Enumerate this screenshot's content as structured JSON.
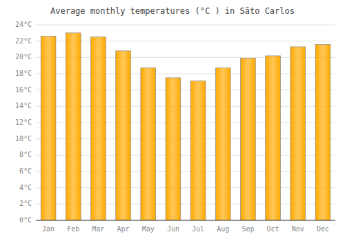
{
  "chart_data": {
    "type": "bar",
    "title": "Average monthly temperatures (°C ) in Sãto Carlos",
    "categories": [
      "Jan",
      "Feb",
      "Mar",
      "Apr",
      "May",
      "Jun",
      "Jul",
      "Aug",
      "Sep",
      "Oct",
      "Nov",
      "Dec"
    ],
    "values": [
      22.6,
      23.0,
      22.5,
      20.8,
      18.7,
      17.5,
      17.1,
      18.7,
      19.9,
      20.2,
      21.3,
      21.6
    ],
    "color": "#FFAA00",
    "ylim": [
      0,
      24
    ],
    "yticks": [
      {
        "value": 0,
        "label": "0°C"
      },
      {
        "value": 2,
        "label": "2°C"
      },
      {
        "value": 4,
        "label": "4°C"
      },
      {
        "value": 6,
        "label": "6°C"
      },
      {
        "value": 8,
        "label": "8°C"
      },
      {
        "value": 10,
        "label": "10°C"
      },
      {
        "value": 12,
        "label": "12°C"
      },
      {
        "value": 14,
        "label": "14°C"
      },
      {
        "value": 16,
        "label": "16°C"
      },
      {
        "value": 18,
        "label": "18°C"
      },
      {
        "value": 20,
        "label": "20°C"
      },
      {
        "value": 22,
        "label": "22°C"
      },
      {
        "value": 24,
        "label": "24°C"
      }
    ],
    "grid": true
  }
}
